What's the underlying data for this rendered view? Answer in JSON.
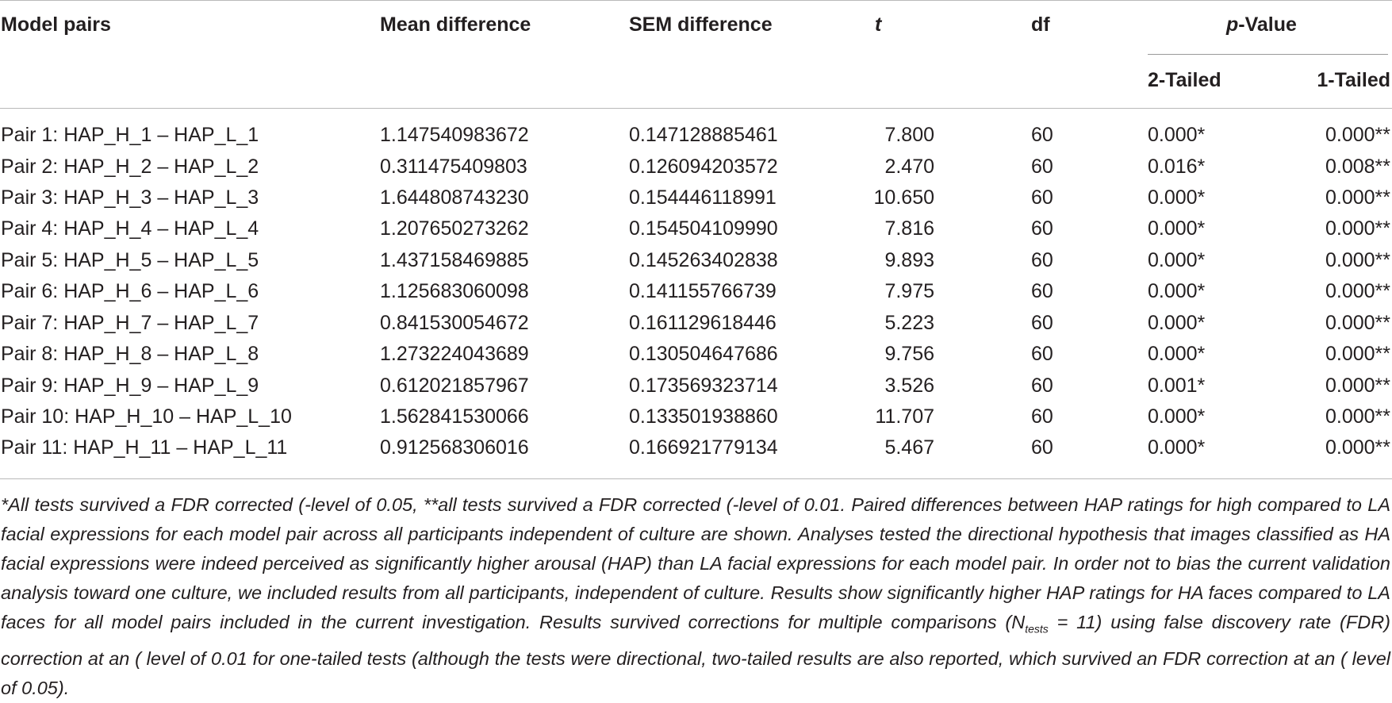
{
  "table": {
    "headers": {
      "model_pairs": "Model pairs",
      "mean_difference": "Mean difference",
      "sem_difference": "SEM difference",
      "t": "t",
      "df": "df",
      "p_value_italic": "p",
      "p_value_rest": "-Value",
      "two_tailed": "2-Tailed",
      "one_tailed": "1-Tailed"
    },
    "rows": [
      {
        "pair": "Pair 1: HAP_H_1 – HAP_L_1",
        "mean": "1.147540983672",
        "sem": "0.147128885461",
        "t": "7.800",
        "df": "60",
        "p2": "0.000*",
        "p1": "0.000**"
      },
      {
        "pair": "Pair 2: HAP_H_2 – HAP_L_2",
        "mean": "0.311475409803",
        "sem": "0.126094203572",
        "t": "2.470",
        "df": "60",
        "p2": "0.016*",
        "p1": "0.008**"
      },
      {
        "pair": "Pair 3: HAP_H_3 – HAP_L_3",
        "mean": "1.644808743230",
        "sem": "0.154446118991",
        "t": "10.650",
        "df": "60",
        "p2": "0.000*",
        "p1": "0.000**"
      },
      {
        "pair": "Pair 4: HAP_H_4 – HAP_L_4",
        "mean": "1.207650273262",
        "sem": "0.154504109990",
        "t": "7.816",
        "df": "60",
        "p2": "0.000*",
        "p1": "0.000**"
      },
      {
        "pair": "Pair 5: HAP_H_5 – HAP_L_5",
        "mean": "1.437158469885",
        "sem": "0.145263402838",
        "t": "9.893",
        "df": "60",
        "p2": "0.000*",
        "p1": "0.000**"
      },
      {
        "pair": "Pair 6: HAP_H_6 – HAP_L_6",
        "mean": "1.125683060098",
        "sem": "0.141155766739",
        "t": "7.975",
        "df": "60",
        "p2": "0.000*",
        "p1": "0.000**"
      },
      {
        "pair": "Pair 7: HAP_H_7 – HAP_L_7",
        "mean": "0.841530054672",
        "sem": "0.161129618446",
        "t": "5.223",
        "df": "60",
        "p2": "0.000*",
        "p1": "0.000**"
      },
      {
        "pair": "Pair 8: HAP_H_8 – HAP_L_8",
        "mean": "1.273224043689",
        "sem": "0.130504647686",
        "t": "9.756",
        "df": "60",
        "p2": "0.000*",
        "p1": "0.000**"
      },
      {
        "pair": "Pair 9: HAP_H_9 – HAP_L_9",
        "mean": "0.612021857967",
        "sem": "0.173569323714",
        "t": "3.526",
        "df": "60",
        "p2": "0.001*",
        "p1": "0.000**"
      },
      {
        "pair": "Pair 10: HAP_H_10 – HAP_L_10",
        "mean": "1.562841530066",
        "sem": "0.133501938860",
        "t": "11.707",
        "df": "60",
        "p2": "0.000*",
        "p1": "0.000**"
      },
      {
        "pair": "Pair 11: HAP_H_11 – HAP_L_11",
        "mean": "0.912568306016",
        "sem": "0.166921779134",
        "t": "5.467",
        "df": "60",
        "p2": "0.000*",
        "p1": "0.000**"
      }
    ]
  },
  "footnote": {
    "part1": "*All tests survived a FDR corrected (-level of 0.05, **all tests survived a FDR corrected (-level of 0.01. Paired differences between HAP ratings for high compared to LA facial expressions for each model pair across all participants independent of culture are shown. Analyses tested the directional hypothesis that images classified as HA facial expressions were indeed perceived as significantly higher arousal (HAP) than LA facial expressions for each model pair. In order not to bias the current validation analysis toward one culture, we included results from all participants, independent of culture. Results show significantly higher HAP ratings for HA faces compared to LA faces for all model pairs included in the current investigation. Results survived corrections for multiple comparisons (N",
    "subscript": "tests",
    "part2": " = 11) using false discovery rate (FDR) correction at an ( level of 0.01 for one-tailed tests (although the tests were directional, two-tailed results are also reported, which survived an FDR correction at an ( level of 0.05)."
  }
}
